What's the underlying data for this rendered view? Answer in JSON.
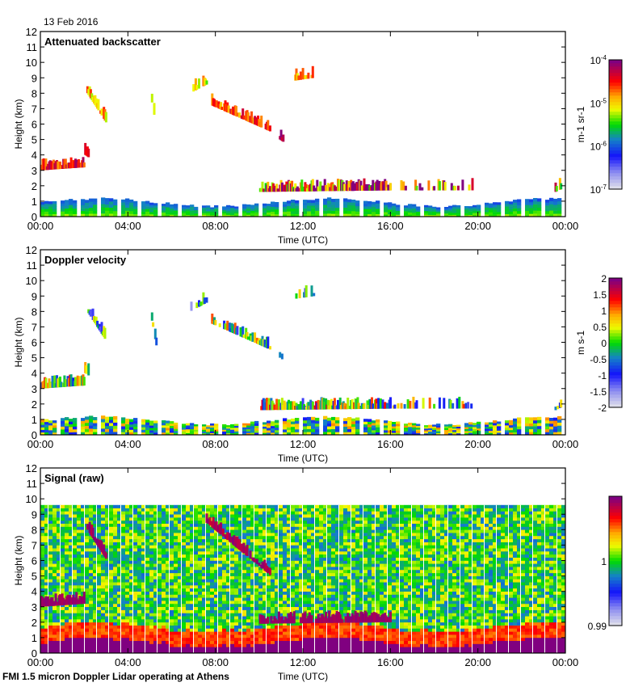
{
  "date_label": "13 Feb 2016",
  "footer": "FMI 1.5 micron Doppler Lidar operating at Athens",
  "chart_data": [
    {
      "type": "heatmap",
      "title": "Attenuated backscatter",
      "xlabel": "Time (UTC)",
      "ylabel": "Height (km)",
      "xlim": [
        0,
        24
      ],
      "ylim": [
        0,
        12
      ],
      "x_ticks": [
        "00:00",
        "04:00",
        "08:00",
        "12:00",
        "16:00",
        "20:00",
        "00:00"
      ],
      "y_ticks": [
        "0",
        "1",
        "2",
        "3",
        "4",
        "5",
        "6",
        "7",
        "8",
        "9",
        "10",
        "11",
        "12"
      ],
      "colorbar": {
        "label": "m-1 sr-1",
        "scale": "log",
        "range": [
          1e-07,
          0.0001
        ],
        "ticks": [
          "10-7",
          "10-6",
          "10-5",
          "10-4"
        ]
      },
      "features": [
        {
          "name": "boundary layer",
          "x_range": [
            0,
            24
          ],
          "height_km": [
            0,
            1.1
          ],
          "level": 0.25
        },
        {
          "name": "low cloud 00-02",
          "x_range": [
            0,
            2.2
          ],
          "height_km": [
            3.0,
            4.2
          ],
          "level": 0.9
        },
        {
          "name": "cirrus 02-03",
          "x_range": [
            2.1,
            3.0
          ],
          "height_km": [
            6.0,
            8.8
          ],
          "level": 0.75
        },
        {
          "name": "cirrus 08-11",
          "x_range": [
            7.8,
            11.0
          ],
          "height_km": [
            5.0,
            9.3
          ],
          "level": 0.75
        },
        {
          "name": "cloud layer 10-16",
          "x_range": [
            10.0,
            16.0
          ],
          "height_km": [
            1.5,
            2.5
          ],
          "level": 0.85
        }
      ]
    },
    {
      "type": "heatmap",
      "title": "Doppler velocity",
      "xlabel": "Time (UTC)",
      "ylabel": "Height (km)",
      "xlim": [
        0,
        24
      ],
      "ylim": [
        0,
        12
      ],
      "x_ticks": [
        "00:00",
        "04:00",
        "08:00",
        "12:00",
        "16:00",
        "20:00",
        "00:00"
      ],
      "y_ticks": [
        "0",
        "1",
        "2",
        "3",
        "4",
        "5",
        "6",
        "7",
        "8",
        "9",
        "10",
        "11",
        "12"
      ],
      "colorbar": {
        "label": "m s-1",
        "scale": "linear",
        "range": [
          -2,
          2
        ],
        "ticks": [
          "-2",
          "-1.5",
          "-1",
          "-0.5",
          "0",
          "0.5",
          "1",
          "1.5",
          "2"
        ]
      }
    },
    {
      "type": "heatmap",
      "title": "Signal (raw)",
      "xlabel": "Time (UTC)",
      "ylabel": "Height (km)",
      "xlim": [
        0,
        24
      ],
      "ylim": [
        0,
        12
      ],
      "x_ticks": [
        "00:00",
        "04:00",
        "08:00",
        "12:00",
        "16:00",
        "20:00",
        "00:00"
      ],
      "y_ticks": [
        "0",
        "1",
        "2",
        "3",
        "4",
        "5",
        "6",
        "7",
        "8",
        "9",
        "10",
        "11",
        "12"
      ],
      "data_top_km": 9.6,
      "colorbar": {
        "label": "",
        "scale": "linear",
        "range": [
          0.99,
          1.01
        ],
        "ticks": [
          "0.99",
          "1"
        ]
      }
    }
  ]
}
